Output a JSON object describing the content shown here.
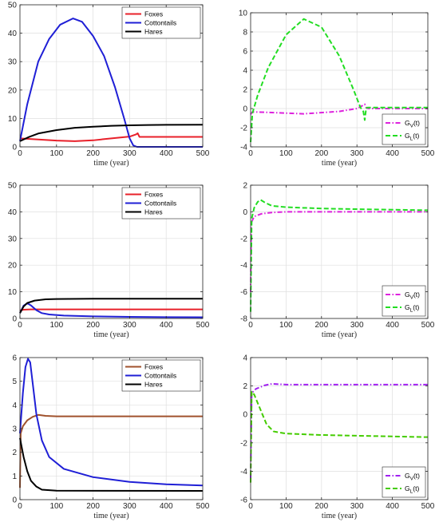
{
  "chart_data": [
    {
      "type": "line",
      "xlabel": "time (year)",
      "xlim": [
        0,
        500
      ],
      "ylim": [
        0,
        50
      ],
      "xticks": [
        0,
        100,
        200,
        300,
        400,
        500
      ],
      "yticks": [
        0,
        10,
        20,
        30,
        40,
        50
      ],
      "grid": true,
      "legend": "top-right",
      "series": [
        {
          "name": "Foxes",
          "color": "#e8202a",
          "dash": "solid",
          "points": [
            [
              0,
              3
            ],
            [
              50,
              2.6
            ],
            [
              100,
              2.2
            ],
            [
              150,
              2.0
            ],
            [
              200,
              2.3
            ],
            [
              250,
              3.0
            ],
            [
              300,
              3.6
            ],
            [
              318,
              4.4
            ],
            [
              322,
              4.8
            ],
            [
              327,
              3.5
            ],
            [
              350,
              3.5
            ],
            [
              400,
              3.5
            ],
            [
              500,
              3.5
            ]
          ]
        },
        {
          "name": "Cottontails",
          "color": "#1f1fd6",
          "dash": "solid",
          "points": [
            [
              0,
              2
            ],
            [
              20,
              15
            ],
            [
              50,
              30
            ],
            [
              80,
              38
            ],
            [
              110,
              43
            ],
            [
              145,
              45.2
            ],
            [
              170,
              44
            ],
            [
              200,
              39
            ],
            [
              230,
              32
            ],
            [
              260,
              21
            ],
            [
              285,
              10
            ],
            [
              300,
              3
            ],
            [
              310,
              0.5
            ],
            [
              320,
              0
            ],
            [
              500,
              0
            ]
          ]
        },
        {
          "name": "Hares",
          "color": "#000000",
          "dash": "solid",
          "points": [
            [
              0,
              2
            ],
            [
              25,
              3.5
            ],
            [
              50,
              4.7
            ],
            [
              100,
              5.9
            ],
            [
              150,
              6.7
            ],
            [
              200,
              7.1
            ],
            [
              250,
              7.4
            ],
            [
              300,
              7.6
            ],
            [
              350,
              7.7
            ],
            [
              400,
              7.75
            ],
            [
              500,
              7.8
            ]
          ]
        }
      ]
    },
    {
      "type": "line",
      "xlabel": "time (year)",
      "xlim": [
        0,
        500
      ],
      "ylim": [
        -4,
        10
      ],
      "xticks": [
        0,
        100,
        200,
        300,
        400,
        500
      ],
      "yticks": [
        -4,
        -2,
        0,
        2,
        4,
        6,
        8,
        10
      ],
      "grid": true,
      "legend": "bottom-right",
      "series": [
        {
          "name": "G_V(t)",
          "label_main": "G",
          "label_sub": "V",
          "label_tail": "(t)",
          "color": "#dd22dd",
          "dash": "dashdot",
          "points": [
            [
              0,
              -0.6
            ],
            [
              5,
              -0.35
            ],
            [
              50,
              -0.4
            ],
            [
              150,
              -0.55
            ],
            [
              250,
              -0.3
            ],
            [
              300,
              0
            ],
            [
              318,
              0.35
            ],
            [
              322,
              0.45
            ],
            [
              327,
              0.05
            ],
            [
              335,
              0
            ],
            [
              500,
              0
            ]
          ]
        },
        {
          "name": "G_L(t)",
          "label_main": "G",
          "label_sub": "L",
          "label_tail": "(t)",
          "color": "#22dd22",
          "dash": "dash",
          "points": [
            [
              0,
              -3.5
            ],
            [
              5,
              -0.5
            ],
            [
              20,
              1.4
            ],
            [
              50,
              4.3
            ],
            [
              100,
              7.7
            ],
            [
              150,
              9.35
            ],
            [
              200,
              8.5
            ],
            [
              250,
              5.5
            ],
            [
              290,
              2
            ],
            [
              310,
              0.1
            ],
            [
              318,
              -0.3
            ],
            [
              322,
              -1.2
            ],
            [
              326,
              0.05
            ],
            [
              330,
              0.1
            ],
            [
              500,
              0.1
            ]
          ]
        }
      ]
    },
    {
      "type": "line",
      "xlabel": "time (year)",
      "xlim": [
        0,
        500
      ],
      "ylim": [
        0,
        50
      ],
      "xticks": [
        0,
        100,
        200,
        300,
        400,
        500
      ],
      "yticks": [
        0,
        10,
        20,
        30,
        40,
        50
      ],
      "grid": true,
      "legend": "top-right",
      "series": [
        {
          "name": "Foxes",
          "color": "#e8202a",
          "dash": "solid",
          "points": [
            [
              0,
              3
            ],
            [
              10,
              3.3
            ],
            [
              30,
              3.4
            ],
            [
              50,
              3.4
            ],
            [
              500,
              3.4
            ]
          ]
        },
        {
          "name": "Cottontails",
          "color": "#1f1fd6",
          "dash": "solid",
          "points": [
            [
              0,
              2
            ],
            [
              10,
              4.8
            ],
            [
              20,
              5.7
            ],
            [
              30,
              4.9
            ],
            [
              45,
              3.1
            ],
            [
              60,
              2
            ],
            [
              80,
              1.5
            ],
            [
              120,
              1.1
            ],
            [
              200,
              0.8
            ],
            [
              300,
              0.6
            ],
            [
              400,
              0.5
            ],
            [
              500,
              0.45
            ]
          ]
        },
        {
          "name": "Hares",
          "color": "#000000",
          "dash": "solid",
          "points": [
            [
              0,
              2
            ],
            [
              10,
              4.5
            ],
            [
              20,
              5.8
            ],
            [
              40,
              6.7
            ],
            [
              70,
              7.2
            ],
            [
              100,
              7.3
            ],
            [
              200,
              7.4
            ],
            [
              500,
              7.4
            ]
          ]
        }
      ]
    },
    {
      "type": "line",
      "xlabel": "time (year)",
      "xlim": [
        0,
        500
      ],
      "ylim": [
        -8,
        2
      ],
      "xticks": [
        0,
        100,
        200,
        300,
        400,
        500
      ],
      "yticks": [
        -8,
        -6,
        -4,
        -2,
        0,
        2
      ],
      "grid": true,
      "legend": "bottom-right",
      "series": [
        {
          "name": "G_V(t)",
          "label_main": "G",
          "label_sub": "V",
          "label_tail": "(t)",
          "color": "#dd22dd",
          "dash": "dashdot",
          "points": [
            [
              0,
              -6
            ],
            [
              2,
              -0.8
            ],
            [
              10,
              -0.35
            ],
            [
              30,
              -0.15
            ],
            [
              60,
              -0.05
            ],
            [
              100,
              0
            ],
            [
              500,
              0
            ]
          ]
        },
        {
          "name": "G_L(t)",
          "label_main": "G",
          "label_sub": "L",
          "label_tail": "(t)",
          "color": "#22dd22",
          "dash": "dash",
          "points": [
            [
              0,
              -7.5
            ],
            [
              3,
              -0.5
            ],
            [
              10,
              0.3
            ],
            [
              20,
              0.75
            ],
            [
              28,
              0.9
            ],
            [
              40,
              0.7
            ],
            [
              60,
              0.45
            ],
            [
              100,
              0.35
            ],
            [
              200,
              0.25
            ],
            [
              300,
              0.2
            ],
            [
              500,
              0.12
            ]
          ]
        }
      ]
    },
    {
      "type": "line",
      "xlabel": "time (year)",
      "xlim": [
        0,
        500
      ],
      "ylim": [
        0,
        6
      ],
      "xticks": [
        0,
        100,
        200,
        300,
        400,
        500
      ],
      "yticks": [
        0,
        1,
        2,
        3,
        4,
        5,
        6
      ],
      "grid": true,
      "legend": "top-right",
      "series": [
        {
          "name": "Foxes",
          "color": "#a0522d",
          "dash": "solid",
          "points": [
            [
              0,
              0.5
            ],
            [
              2,
              2.8
            ],
            [
              8,
              3.1
            ],
            [
              20,
              3.35
            ],
            [
              35,
              3.5
            ],
            [
              50,
              3.58
            ],
            [
              70,
              3.54
            ],
            [
              100,
              3.52
            ],
            [
              500,
              3.52
            ]
          ]
        },
        {
          "name": "Cottontails",
          "color": "#1f1fd6",
          "dash": "solid",
          "points": [
            [
              0,
              2.8
            ],
            [
              8,
              4.5
            ],
            [
              15,
              5.6
            ],
            [
              22,
              5.95
            ],
            [
              28,
              5.8
            ],
            [
              35,
              4.9
            ],
            [
              45,
              3.6
            ],
            [
              60,
              2.5
            ],
            [
              80,
              1.8
            ],
            [
              120,
              1.3
            ],
            [
              200,
              0.95
            ],
            [
              300,
              0.75
            ],
            [
              400,
              0.65
            ],
            [
              500,
              0.6
            ]
          ]
        },
        {
          "name": "Hares",
          "color": "#000000",
          "dash": "solid",
          "points": [
            [
              0,
              2.6
            ],
            [
              10,
              1.8
            ],
            [
              20,
              1.2
            ],
            [
              30,
              0.8
            ],
            [
              45,
              0.55
            ],
            [
              60,
              0.42
            ],
            [
              100,
              0.38
            ],
            [
              500,
              0.37
            ]
          ]
        }
      ]
    },
    {
      "type": "line",
      "xlabel": "time (year)",
      "xlim": [
        0,
        500
      ],
      "ylim": [
        -6,
        4
      ],
      "xticks": [
        0,
        100,
        200,
        300,
        400,
        500
      ],
      "yticks": [
        -6,
        -4,
        -2,
        0,
        2,
        4
      ],
      "grid": true,
      "legend": "bottom-right",
      "series": [
        {
          "name": "G_V(t)",
          "label_main": "G",
          "label_sub": "V",
          "label_tail": "(t)",
          "color": "#a020f0",
          "dash": "dashdot",
          "points": [
            [
              0,
              -4.5
            ],
            [
              3,
              1.5
            ],
            [
              15,
              1.8
            ],
            [
              40,
              2.05
            ],
            [
              60,
              2.15
            ],
            [
              100,
              2.1
            ],
            [
              500,
              2.1
            ]
          ]
        },
        {
          "name": "G_L(t)",
          "label_main": "G",
          "label_sub": "L",
          "label_tail": "(t)",
          "color": "#44cc00",
          "dash": "dash",
          "points": [
            [
              0,
              -4.8
            ],
            [
              3,
              1.6
            ],
            [
              10,
              1.4
            ],
            [
              25,
              0.5
            ],
            [
              45,
              -0.7
            ],
            [
              65,
              -1.2
            ],
            [
              100,
              -1.35
            ],
            [
              200,
              -1.45
            ],
            [
              300,
              -1.5
            ],
            [
              500,
              -1.6
            ]
          ]
        }
      ]
    }
  ]
}
